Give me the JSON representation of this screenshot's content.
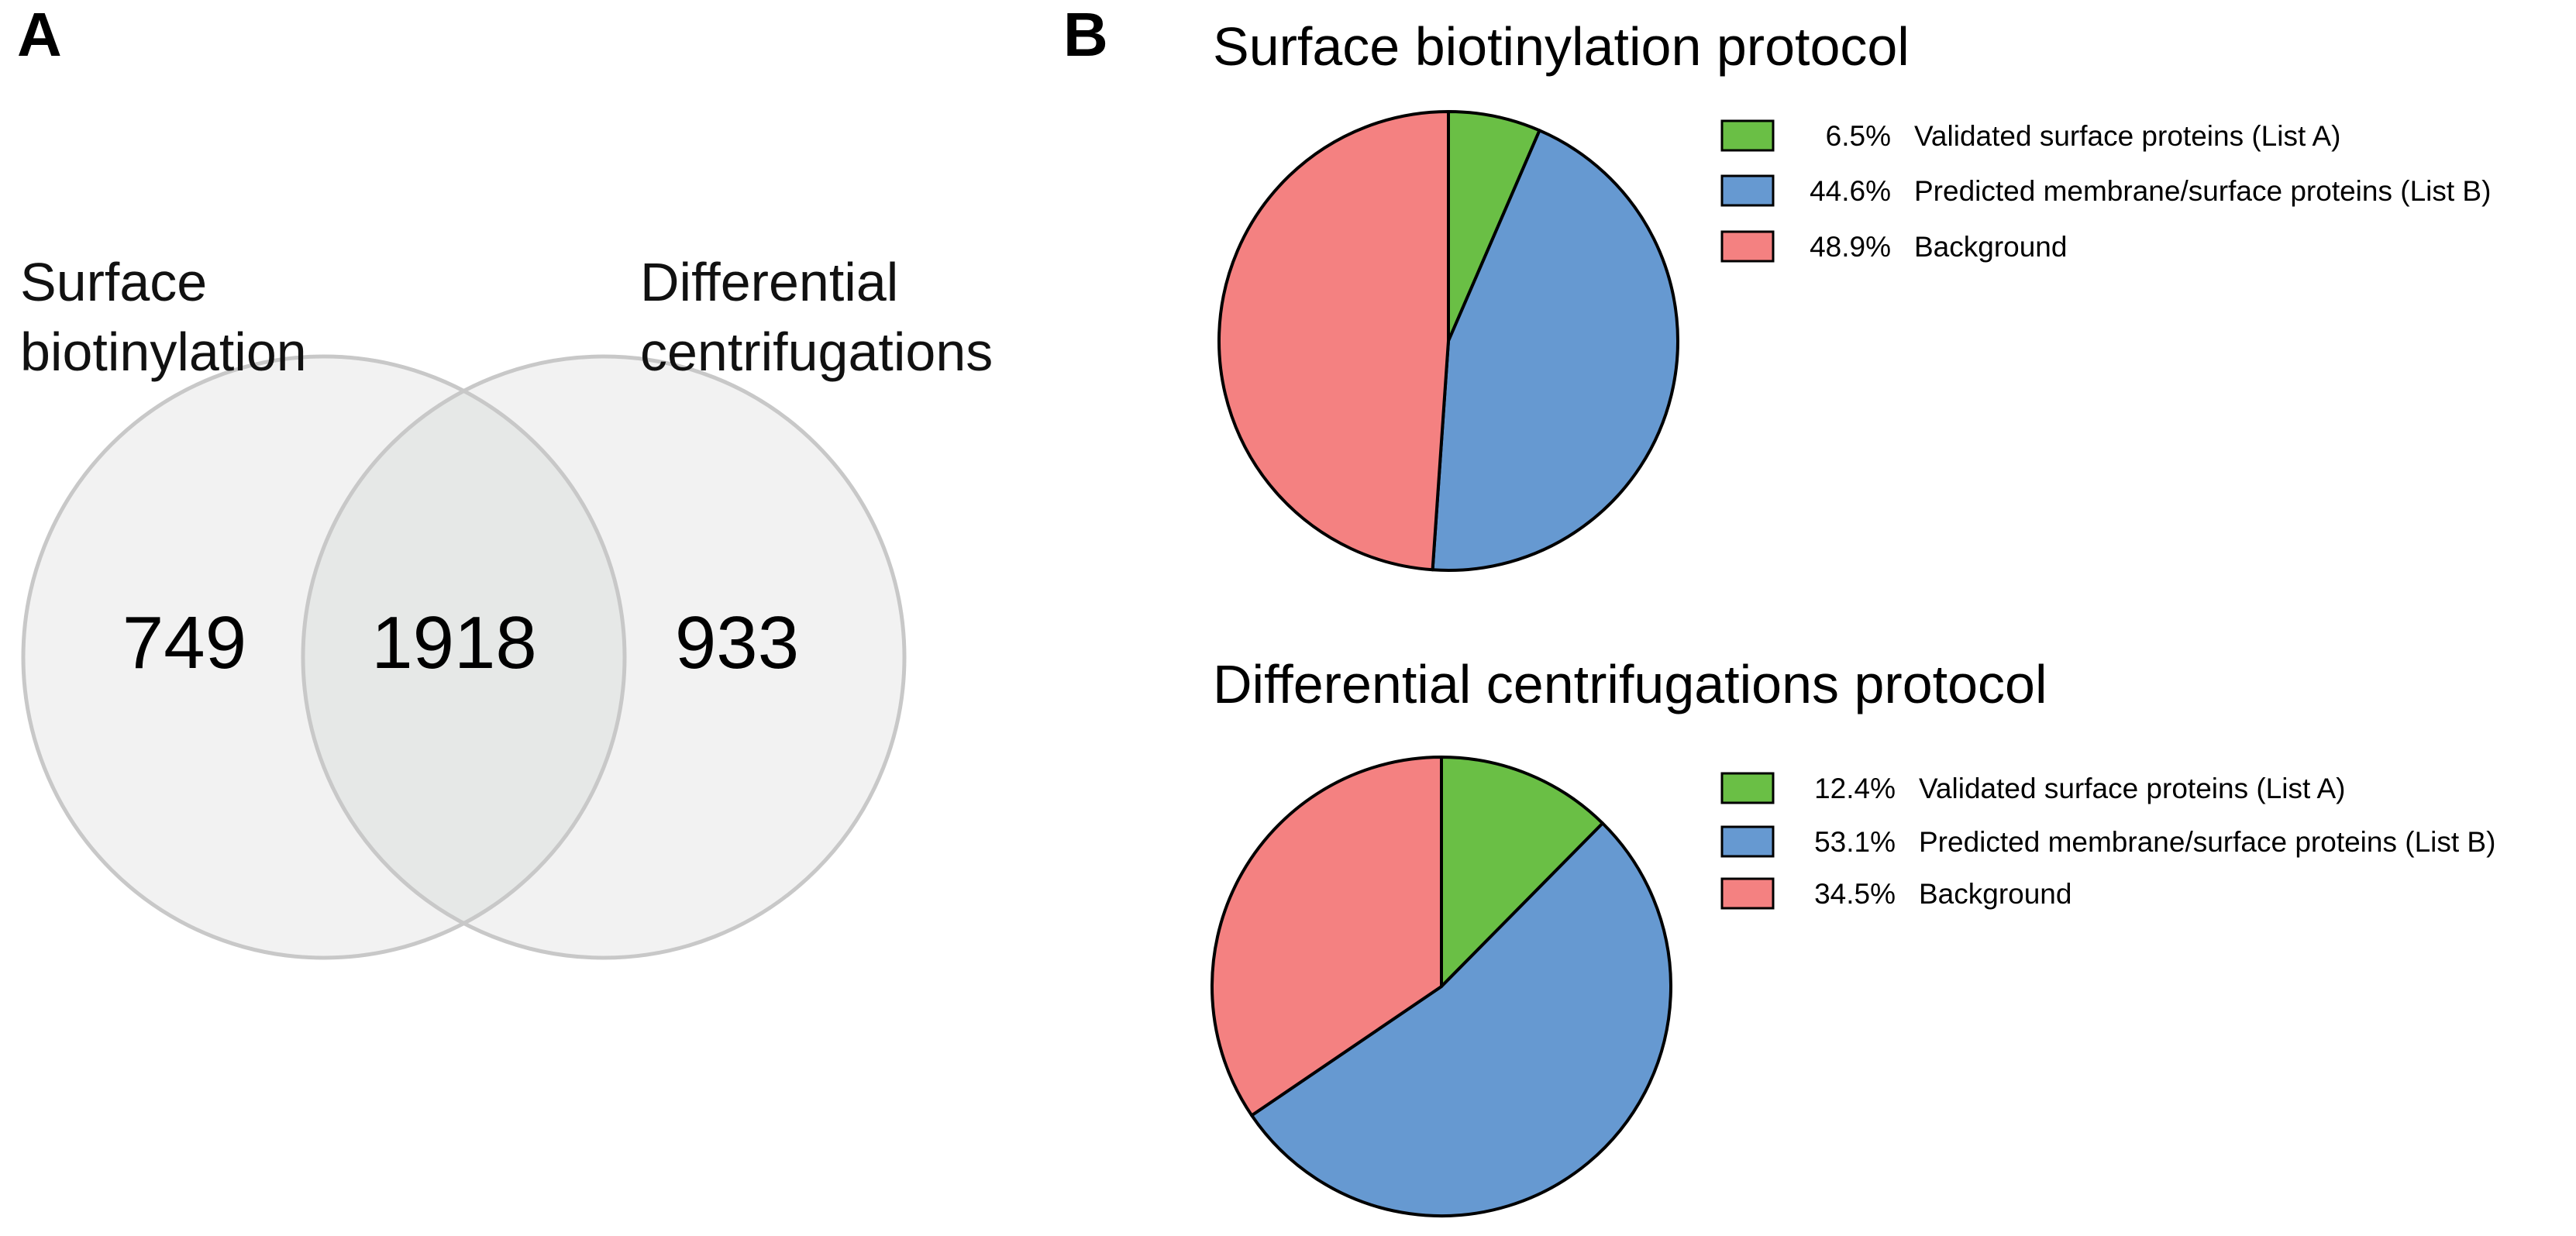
{
  "panels": {
    "a": {
      "label": "A"
    },
    "b": {
      "label": "B"
    }
  },
  "colors": {
    "venn_fill": "#f2f2f2",
    "venn_overlap": "#e6e8e7",
    "venn_stroke": "#c8c8c8",
    "validated": "#6abf45",
    "predicted": "#6699d1",
    "background": "#f48181",
    "outline": "#000000"
  },
  "chart_data": [
    {
      "type": "venn",
      "sets": [
        {
          "name_lines": [
            "Surface",
            "biotinylation"
          ]
        },
        {
          "name_lines": [
            "Differential",
            "centrifugations"
          ]
        }
      ],
      "regions": {
        "left_only": 749,
        "overlap": 1918,
        "right_only": 933
      },
      "region_labels": {
        "left_only": "749",
        "overlap": "1918",
        "right_only": "933"
      }
    },
    {
      "type": "pie",
      "title": "Surface biotinylation protocol",
      "slices": [
        {
          "pct_label": "6.5%",
          "value": 6.5,
          "label": "Validated surface proteins (List A)",
          "color_key": "validated"
        },
        {
          "pct_label": "44.6%",
          "value": 44.6,
          "label": "Predicted membrane/surface proteins (List B)",
          "color_key": "predicted"
        },
        {
          "pct_label": "48.9%",
          "value": 48.9,
          "label": "Background",
          "color_key": "background"
        }
      ]
    },
    {
      "type": "pie",
      "title": "Differential centrifugations protocol",
      "slices": [
        {
          "pct_label": "12.4%",
          "value": 12.4,
          "label": "Validated surface proteins (List A)",
          "color_key": "validated"
        },
        {
          "pct_label": "53.1%",
          "value": 53.1,
          "label": "Predicted membrane/surface proteins (List B)",
          "color_key": "predicted"
        },
        {
          "pct_label": "34.5%",
          "value": 34.5,
          "label": "Background",
          "color_key": "background"
        }
      ]
    }
  ]
}
